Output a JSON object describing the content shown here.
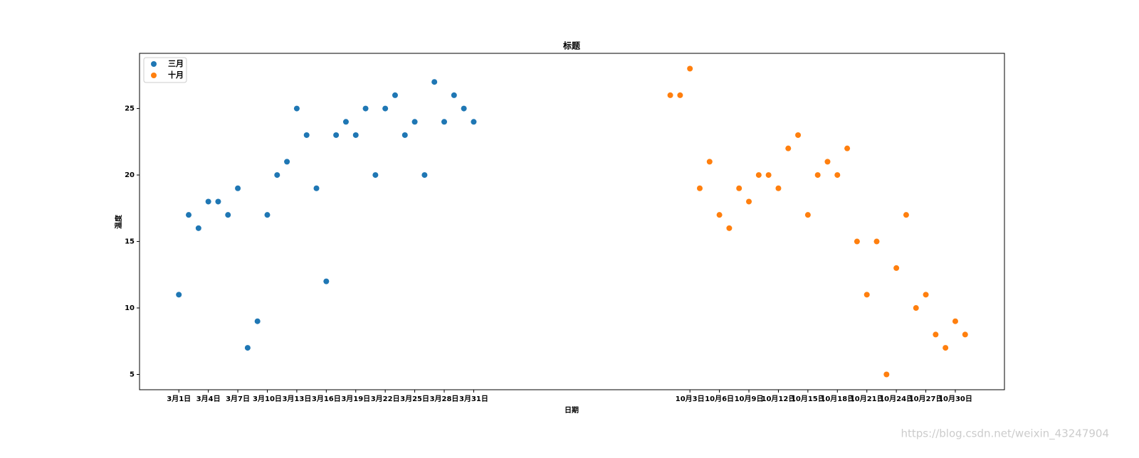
{
  "chart_data": {
    "type": "scatter",
    "title": "标题",
    "xlabel": "日期",
    "ylabel": "温度",
    "watermark": "https://blog.csdn.net/weixin_43247904",
    "legend": "upper left",
    "xlim": [
      -3,
      85
    ],
    "ylim": [
      3.85,
      29.15
    ],
    "yticks": [
      5,
      10,
      15,
      20,
      25
    ],
    "xticks": [
      {
        "value": 1,
        "label": "3月1日"
      },
      {
        "value": 4,
        "label": "3月4日"
      },
      {
        "value": 7,
        "label": "3月7日"
      },
      {
        "value": 10,
        "label": "3月10日"
      },
      {
        "value": 13,
        "label": "3月13日"
      },
      {
        "value": 16,
        "label": "3月16日"
      },
      {
        "value": 19,
        "label": "3月19日"
      },
      {
        "value": 22,
        "label": "3月22日"
      },
      {
        "value": 25,
        "label": "3月25日"
      },
      {
        "value": 28,
        "label": "3月28日"
      },
      {
        "value": 31,
        "label": "3月31日"
      },
      {
        "value": 53,
        "label": "10月3日"
      },
      {
        "value": 56,
        "label": "10月6日"
      },
      {
        "value": 59,
        "label": "10月9日"
      },
      {
        "value": 62,
        "label": "10月12日"
      },
      {
        "value": 65,
        "label": "10月15日"
      },
      {
        "value": 68,
        "label": "10月18日"
      },
      {
        "value": 71,
        "label": "10月21日"
      },
      {
        "value": 74,
        "label": "10月24日"
      },
      {
        "value": 77,
        "label": "10月27日"
      },
      {
        "value": 80,
        "label": "10月30日"
      }
    ],
    "series": [
      {
        "name": "三月",
        "color": "#1f77b4",
        "x": [
          1,
          2,
          3,
          4,
          5,
          6,
          7,
          8,
          9,
          10,
          11,
          12,
          13,
          14,
          15,
          16,
          17,
          18,
          19,
          20,
          21,
          22,
          23,
          24,
          25,
          26,
          27,
          28,
          29,
          30,
          31
        ],
        "values": [
          11,
          17,
          16,
          18,
          18,
          17,
          19,
          7,
          9,
          17,
          20,
          21,
          25,
          23,
          19,
          12,
          23,
          24,
          23,
          25,
          20,
          25,
          26,
          23,
          24,
          20,
          27,
          24,
          26,
          25,
          24
        ]
      },
      {
        "name": "十月",
        "color": "#ff7f0e",
        "x": [
          51,
          52,
          53,
          54,
          55,
          56,
          57,
          58,
          59,
          60,
          61,
          62,
          63,
          64,
          65,
          66,
          67,
          68,
          69,
          70,
          71,
          72,
          73,
          74,
          75,
          76,
          77,
          78,
          79,
          80,
          81
        ],
        "values": [
          26,
          26,
          28,
          19,
          21,
          17,
          16,
          19,
          18,
          20,
          20,
          19,
          22,
          23,
          17,
          20,
          21,
          20,
          22,
          15,
          11,
          15,
          5,
          13,
          17,
          10,
          11,
          8,
          7,
          9,
          8
        ]
      }
    ]
  }
}
